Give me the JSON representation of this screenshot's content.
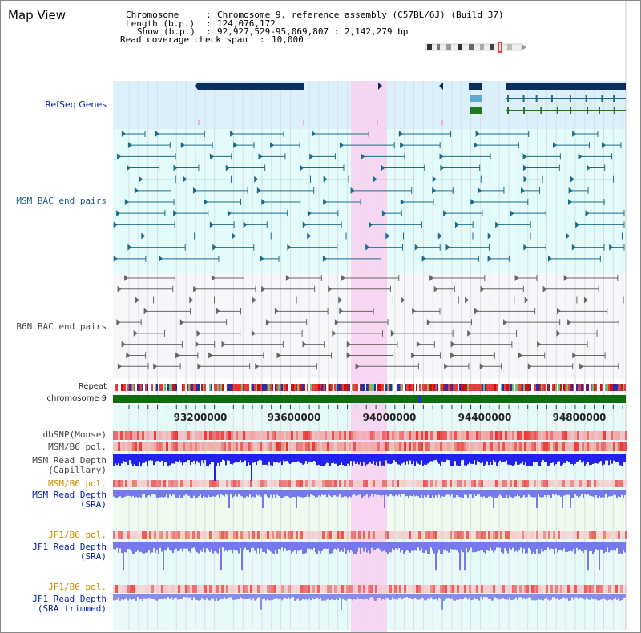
{
  "view": {
    "title": "Map View",
    "chromosome_label": "Chromosome",
    "chromosome_value": "Chromosome 9, reference assembly (C57BL/6J) (Build 37)",
    "length_label": "Length (b.p.)",
    "length_value": "124,076,172",
    "show_label": "Show (b.p.)",
    "show_value": "92,927,529-95,069,807 : 2,142,279 bp",
    "coverage_label": "Read coverage check span",
    "coverage_value": "10,000"
  },
  "tracks": {
    "refseq": "RefSeq Genes",
    "msm_bac": "MSM BAC end pairs",
    "b6n_bac": "B6N BAC end pairs",
    "repeat": "Repeat",
    "chrom": "chromosome 9",
    "dbsnp": "dbSNP(Mouse)",
    "msm_b6_pol1": "MSM/B6 pol.",
    "msm_depth_cap_1": "MSM Read Depth",
    "msm_depth_cap_2": "(Capillary)",
    "msm_b6_pol2": "MSM/B6 pol.",
    "msm_depth_sra_1": "MSM Read Depth",
    "msm_depth_sra_2": "(SRA)",
    "jf1_pol1": "JF1/B6 pol.",
    "jf1_depth_sra_1": "JF1 Read Depth",
    "jf1_depth_sra_2": "(SRA)",
    "jf1_pol2": "JF1/B6 pol.",
    "jf1_depth_trim_1": "JF1 Read Depth",
    "jf1_depth_trim_2": "(SRA trimmed)"
  },
  "axis": {
    "ticks": [
      "93200000",
      "93600000",
      "94000000",
      "94400000",
      "94800000"
    ]
  },
  "colors": {
    "highlight": "#f7d3f1",
    "refseq_bg": "#dcf0fb",
    "msm_bg": "#e3fbfb",
    "b6n_bg": "#f7f7fa",
    "depth_bg": "#e6fafa",
    "navy": "#0a22a8",
    "gene_dark": "#0b2f5d",
    "gene_teal": "#1d6c8c",
    "gene_green": "#1f7a1f",
    "chrom_green": "#0d6e0d",
    "snp_red": "#ee4444",
    "depth_blue": "#2222ee",
    "depth_light": "#7777ee"
  }
}
